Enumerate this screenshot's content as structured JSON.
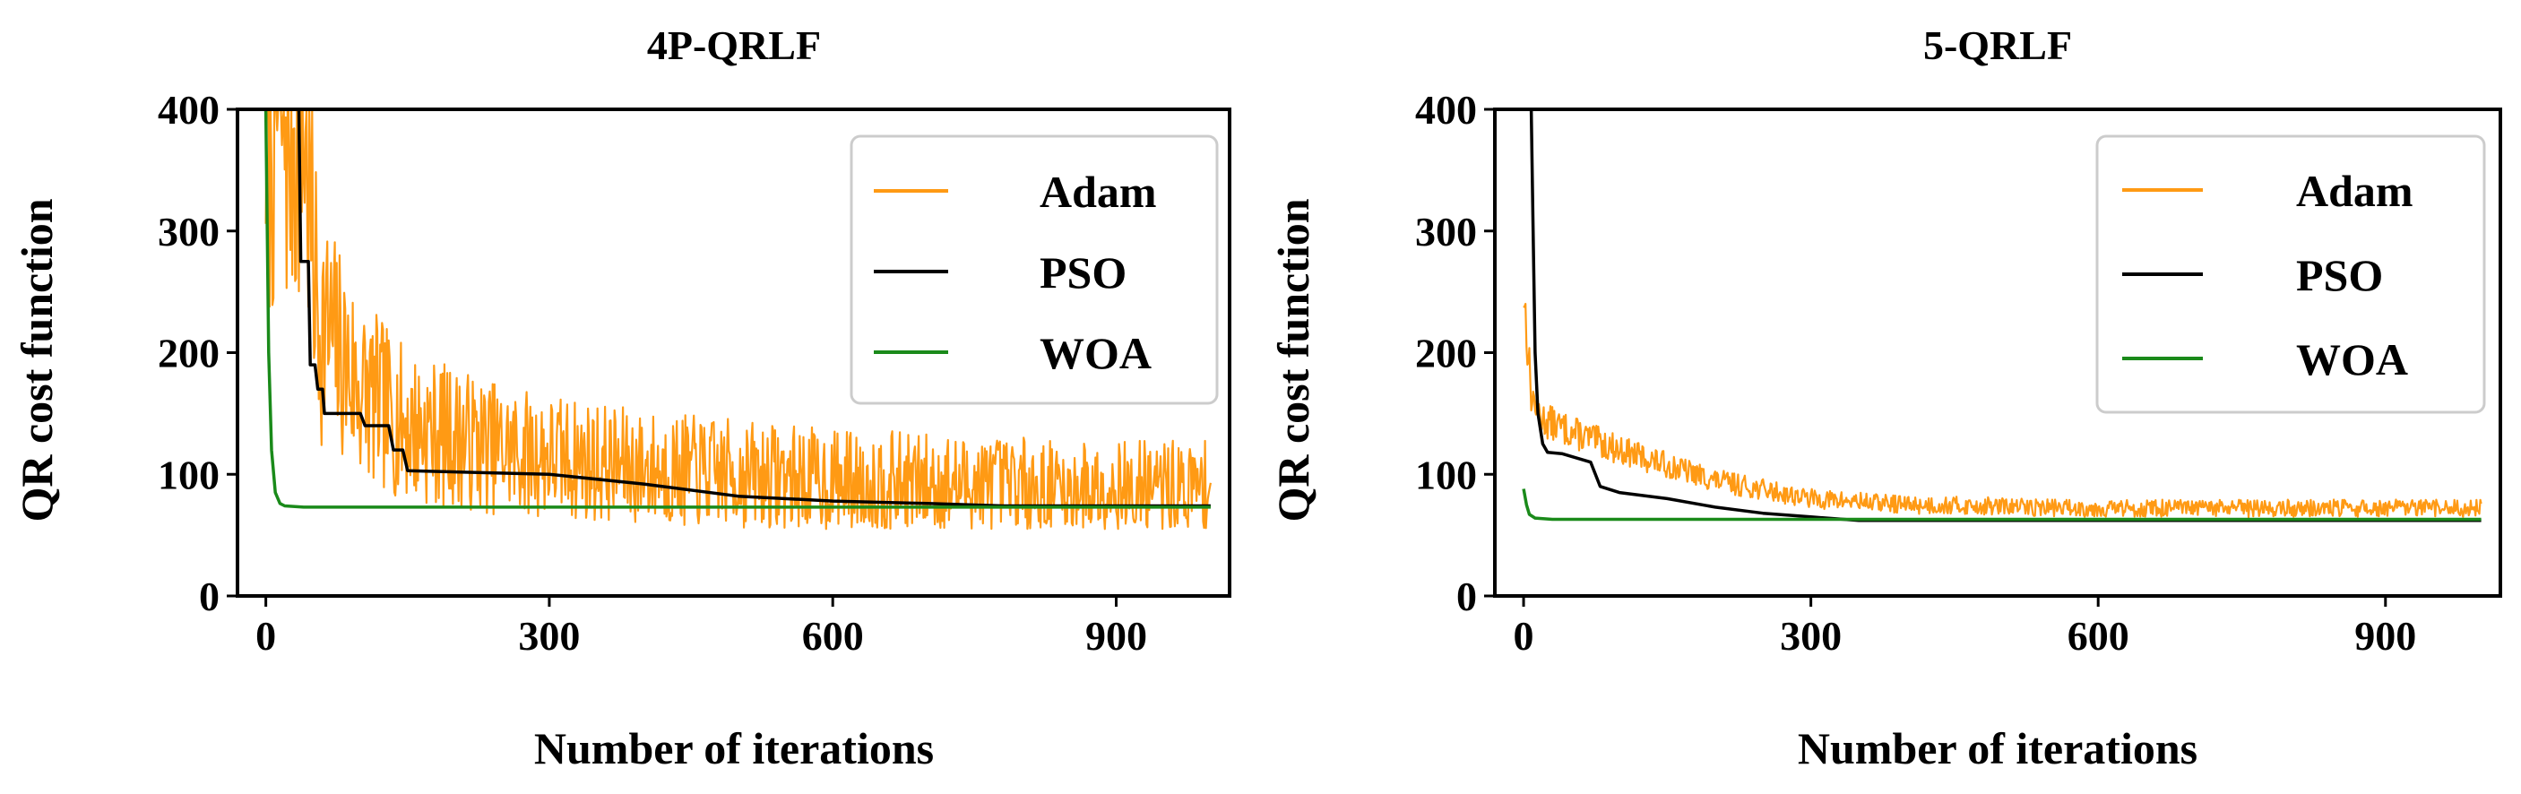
{
  "chart_data": [
    {
      "type": "line",
      "title": "4P-QRLF",
      "xlabel": "Number of iterations",
      "ylabel": "QR cost function",
      "xlim": [
        -30,
        1020
      ],
      "ylim": [
        0,
        400
      ],
      "xticks": [
        0,
        300,
        600,
        900
      ],
      "yticks": [
        0,
        100,
        200,
        300,
        400
      ],
      "legend_position": "top-right",
      "series": [
        {
          "name": "Adam",
          "color": "#ff9a14",
          "noisy": true,
          "noise": 45,
          "noise_min": 55,
          "seed": 7,
          "x": [
            0,
            40,
            55,
            100,
            150,
            250,
            400,
            600,
            800,
            1000
          ],
          "y": [
            400,
            400,
            230,
            170,
            140,
            120,
            105,
            95,
            90,
            88
          ]
        },
        {
          "name": "PSO",
          "color": "#000000",
          "noisy": false,
          "x": [
            35,
            37,
            45,
            47,
            52,
            55,
            60,
            62,
            100,
            105,
            130,
            135,
            145,
            150,
            300,
            400,
            500,
            600,
            700,
            780,
            1000
          ],
          "y": [
            400,
            275,
            275,
            190,
            190,
            170,
            170,
            150,
            150,
            140,
            140,
            120,
            120,
            103,
            100,
            92,
            82,
            78,
            76,
            74,
            74
          ]
        },
        {
          "name": "WOA",
          "color": "#1a8a1a",
          "noisy": false,
          "x": [
            0,
            3,
            6,
            10,
            15,
            20,
            40,
            1000
          ],
          "y": [
            400,
            200,
            120,
            85,
            76,
            74,
            73,
            73
          ]
        }
      ]
    },
    {
      "type": "line",
      "title": "5-QRLF",
      "xlabel": "Number of iterations",
      "ylabel": "QR cost function",
      "xlim": [
        -30,
        1020
      ],
      "ylim": [
        0,
        400
      ],
      "xticks": [
        0,
        300,
        600,
        900
      ],
      "yticks": [
        0,
        100,
        200,
        300,
        400
      ],
      "legend_position": "top-right",
      "series": [
        {
          "name": "Adam",
          "color": "#ff9a14",
          "noisy": true,
          "noise": 10,
          "noise_min": 55,
          "seed": 13,
          "x": [
            0,
            3,
            8,
            20,
            50,
            100,
            200,
            300,
            400,
            600,
            1000
          ],
          "y": [
            250,
            220,
            165,
            145,
            135,
            120,
            95,
            80,
            75,
            72,
            72
          ]
        },
        {
          "name": "PSO",
          "color": "#000000",
          "noisy": false,
          "x": [
            8,
            10,
            12,
            15,
            20,
            25,
            40,
            70,
            80,
            100,
            150,
            200,
            250,
            300,
            350,
            1000
          ],
          "y": [
            400,
            300,
            200,
            150,
            125,
            118,
            117,
            110,
            90,
            85,
            80,
            73,
            68,
            65,
            62,
            62
          ]
        },
        {
          "name": "WOA",
          "color": "#1a8a1a",
          "noisy": false,
          "x": [
            0,
            3,
            6,
            12,
            30,
            1000
          ],
          "y": [
            88,
            75,
            67,
            64,
            63,
            63
          ]
        }
      ]
    }
  ]
}
